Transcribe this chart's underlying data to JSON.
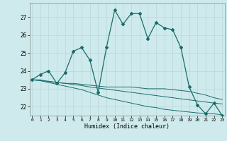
{
  "xlabel": "Humidex (Indice chaleur)",
  "background_color": "#ceeaec",
  "grid_color": "#b8d8da",
  "line_color": "#1a6b6b",
  "x_ticks": [
    0,
    1,
    2,
    3,
    4,
    5,
    6,
    7,
    8,
    9,
    10,
    11,
    12,
    13,
    14,
    15,
    16,
    17,
    18,
    19,
    20,
    21,
    22,
    23
  ],
  "ylim": [
    21.5,
    27.8
  ],
  "yticks": [
    22,
    23,
    24,
    25,
    26,
    27
  ],
  "line1_x": [
    0,
    1,
    2,
    3,
    4,
    5,
    6,
    7,
    8,
    9,
    10,
    11,
    12,
    13,
    14,
    15,
    16,
    17,
    18,
    19,
    20,
    21,
    22,
    23
  ],
  "line1_y": [
    23.5,
    23.8,
    24.0,
    23.3,
    23.9,
    25.1,
    25.3,
    24.6,
    22.8,
    25.3,
    27.4,
    26.6,
    27.2,
    27.2,
    25.8,
    26.7,
    26.4,
    26.3,
    25.3,
    23.1,
    22.1,
    21.6,
    22.2,
    21.5
  ],
  "line2_x": [
    0,
    1,
    2,
    3,
    4,
    5,
    6,
    7,
    8,
    9,
    10,
    11,
    12,
    13,
    14,
    15,
    16,
    17,
    18,
    19,
    20,
    21,
    22,
    23
  ],
  "line2_y": [
    23.5,
    23.5,
    23.4,
    23.35,
    23.3,
    23.3,
    23.25,
    23.2,
    23.15,
    23.1,
    23.1,
    23.1,
    23.1,
    23.05,
    23.0,
    23.0,
    23.0,
    22.95,
    22.9,
    22.85,
    22.75,
    22.65,
    22.5,
    22.4
  ],
  "line3_x": [
    0,
    1,
    2,
    3,
    4,
    5,
    6,
    7,
    8,
    9,
    10,
    11,
    12,
    13,
    14,
    15,
    16,
    17,
    18,
    19,
    20,
    21,
    22,
    23
  ],
  "line3_y": [
    23.5,
    23.45,
    23.35,
    23.25,
    23.15,
    23.05,
    22.95,
    22.8,
    22.65,
    22.5,
    22.4,
    22.3,
    22.2,
    22.1,
    22.0,
    21.95,
    21.85,
    21.8,
    21.75,
    21.7,
    21.65,
    21.62,
    21.6,
    21.55
  ],
  "line4_x": [
    0,
    1,
    2,
    3,
    4,
    5,
    6,
    7,
    8,
    9,
    10,
    11,
    12,
    13,
    14,
    15,
    16,
    17,
    18,
    19,
    20,
    21,
    22,
    23
  ],
  "line4_y": [
    23.5,
    23.46,
    23.42,
    23.36,
    23.3,
    23.24,
    23.18,
    23.1,
    23.04,
    22.98,
    22.92,
    22.86,
    22.8,
    22.74,
    22.68,
    22.62,
    22.56,
    22.5,
    22.44,
    22.38,
    22.32,
    22.26,
    22.2,
    22.15
  ]
}
